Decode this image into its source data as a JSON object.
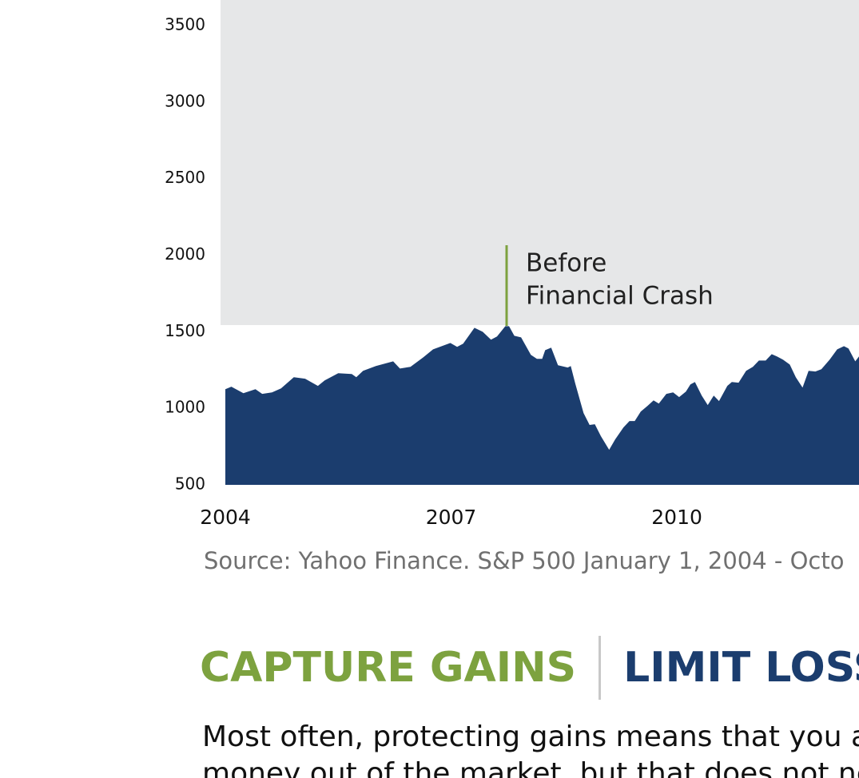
{
  "chart_data": {
    "type": "area",
    "annotation": [
      "Before",
      "Financial Crash"
    ],
    "source": "Source: Yahoo Finance. S&P 500 January 1, 2004 - Octo",
    "color": "#1b3d6e",
    "x": [
      2004.0,
      2004.08,
      2004.24,
      2004.4,
      2004.49,
      2004.62,
      2004.74,
      2004.91,
      2005.06,
      2005.23,
      2005.32,
      2005.5,
      2005.68,
      2005.74,
      2005.83,
      2006.0,
      2006.23,
      2006.32,
      2006.46,
      2006.63,
      2006.76,
      2006.99,
      2007.08,
      2007.16,
      2007.31,
      2007.42,
      2007.53,
      2007.61,
      2007.72,
      2007.77,
      2007.84,
      2007.93,
      2008.06,
      2008.14,
      2008.21,
      2008.25,
      2008.33,
      2008.42,
      2008.55,
      2008.59,
      2008.65,
      2008.76,
      2008.84,
      2008.91,
      2008.99,
      2009.1,
      2009.18,
      2009.29,
      2009.37,
      2009.44,
      2009.52,
      2009.61,
      2009.69,
      2009.76,
      2009.86,
      2009.95,
      2010.03,
      2010.12,
      2010.18,
      2010.24,
      2010.33,
      2010.41,
      2010.49,
      2010.56,
      2010.67,
      2010.73,
      2010.82,
      2010.92,
      2011.01,
      2011.09,
      2011.18,
      2011.26,
      2011.33,
      2011.41,
      2011.5,
      2011.58,
      2011.67,
      2011.75,
      2011.84,
      2011.92,
      2012.03,
      2012.13,
      2012.22,
      2012.28,
      2012.37,
      2012.42
    ],
    "values": [
      1125,
      1141,
      1099,
      1125,
      1094,
      1104,
      1130,
      1203,
      1193,
      1146,
      1182,
      1229,
      1224,
      1203,
      1245,
      1276,
      1307,
      1260,
      1271,
      1333,
      1385,
      1427,
      1401,
      1422,
      1526,
      1500,
      1448,
      1469,
      1536,
      1536,
      1474,
      1463,
      1349,
      1323,
      1323,
      1380,
      1396,
      1281,
      1266,
      1276,
      1161,
      969,
      891,
      896,
      818,
      729,
      797,
      875,
      917,
      917,
      979,
      1016,
      1052,
      1031,
      1094,
      1104,
      1073,
      1109,
      1156,
      1172,
      1083,
      1021,
      1083,
      1047,
      1146,
      1172,
      1167,
      1245,
      1271,
      1312,
      1312,
      1354,
      1339,
      1318,
      1286,
      1203,
      1135,
      1245,
      1240,
      1255,
      1318,
      1385,
      1406,
      1391,
      1307,
      1339
    ],
    "xlim": [
      2004,
      2012.42
    ],
    "xticks": [
      2004,
      2007,
      2010
    ],
    "ylim": [
      500,
      3500
    ],
    "yticks": [
      500,
      1000,
      1500,
      2000,
      2500,
      3000,
      3500
    ]
  },
  "headline": {
    "gains": "CAPTURE GAINS",
    "losses": "LIMIT LOSS"
  },
  "body": [
    "Most often, protecting gains means that you a",
    "money out of the market, but that does not ne"
  ]
}
